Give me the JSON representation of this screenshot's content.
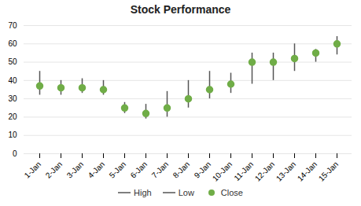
{
  "chart_data": {
    "type": "hlc",
    "title": "Stock Performance",
    "categories": [
      "1-Jan",
      "2-Jan",
      "3-Jan",
      "4-Jan",
      "5-Jan",
      "6-Jan",
      "7-Jan",
      "8-Jan",
      "9-Jan",
      "10-Jan",
      "11-Jan",
      "12-Jan",
      "13-Jan",
      "14-Jan",
      "15-Jan"
    ],
    "series": [
      {
        "name": "High",
        "color": "#555555",
        "values": [
          45,
          40,
          41,
          40,
          28,
          27,
          34,
          40,
          45,
          44,
          55,
          55,
          60,
          57,
          64
        ]
      },
      {
        "name": "Low",
        "color": "#555555",
        "values": [
          32,
          32,
          33,
          32,
          22,
          19,
          20,
          25,
          30,
          33,
          38,
          40,
          45,
          50,
          54
        ]
      },
      {
        "name": "Close",
        "color": "#70ad47",
        "marker": "circle",
        "values": [
          37,
          36,
          36,
          35,
          25,
          22,
          25,
          30,
          35,
          38,
          50,
          50,
          52,
          55,
          60
        ]
      }
    ],
    "ylim": [
      0,
      70
    ],
    "yticks": [
      0,
      10,
      20,
      30,
      40,
      50,
      60,
      70
    ],
    "grid": true,
    "legend": "bottom"
  }
}
